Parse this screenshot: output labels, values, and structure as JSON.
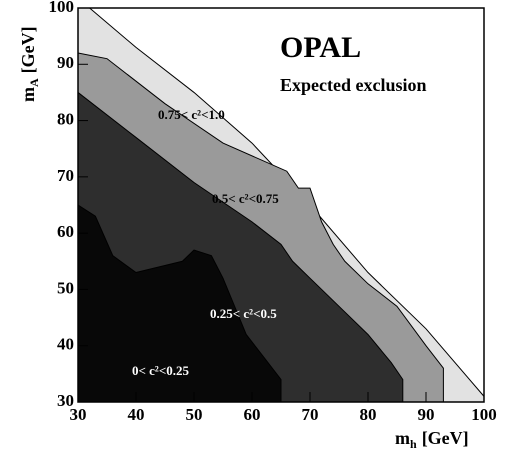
{
  "chart_data": {
    "type": "region",
    "title": "OPAL",
    "subtitle": "Expected exclusion",
    "xlabel": {
      "symbol": "m",
      "subscript": "h",
      "unit": "[GeV]"
    },
    "ylabel": {
      "symbol": "m",
      "subscript": "A",
      "unit": "[GeV]"
    },
    "xlim": [
      30,
      100
    ],
    "ylim": [
      30,
      100
    ],
    "xticks": [
      30,
      40,
      50,
      60,
      70,
      80,
      90,
      100
    ],
    "yticks": [
      30,
      40,
      50,
      60,
      70,
      80,
      90,
      100
    ],
    "regions": [
      {
        "label": "0.75< c²<1.0",
        "color": "#e2e2e2",
        "x": [
          30,
          30,
          32,
          40,
          50,
          60,
          70,
          80,
          90,
          100,
          100
        ],
        "y": [
          30,
          100,
          100,
          93,
          85,
          76,
          65,
          53,
          43,
          31,
          30
        ]
      },
      {
        "label": "0.5< c²<0.75",
        "color": "#9a9a9a",
        "x": [
          30,
          30,
          35,
          45,
          55,
          66,
          68,
          70,
          72,
          74,
          76,
          80,
          85,
          90,
          93,
          93
        ],
        "y": [
          30,
          92,
          91,
          83,
          76,
          71,
          68,
          68,
          62,
          58,
          55,
          51,
          47,
          40,
          36,
          30
        ]
      },
      {
        "label": "0.25< c²<0.5",
        "color": "#2e2e2e",
        "x": [
          30,
          30,
          40,
          50,
          60,
          65,
          67,
          70,
          75,
          80,
          84,
          86,
          86
        ],
        "y": [
          30,
          85,
          77,
          69,
          62,
          58,
          55,
          52,
          47,
          42,
          37,
          34,
          30
        ]
      },
      {
        "label": "0< c²<0.25",
        "color": "#080808",
        "x": [
          30,
          30,
          33,
          36,
          40,
          44,
          48,
          50,
          53,
          55,
          57,
          59,
          62,
          65,
          65
        ],
        "y": [
          30,
          65,
          63,
          56,
          53,
          54,
          55,
          57,
          56,
          52,
          47,
          42,
          38,
          34,
          30
        ]
      }
    ]
  }
}
